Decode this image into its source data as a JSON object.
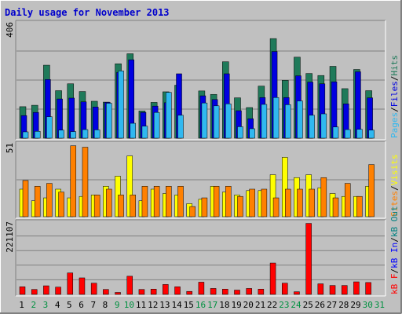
{
  "title": "Daily usage for November 2013",
  "colors": {
    "background": "#c0c0c0",
    "title": "#0000cc",
    "grid": "#808080",
    "hits": "#1f7a5a",
    "files": "#0000e0",
    "pages": "#30b8f0",
    "visits": "#ffff00",
    "sites": "#ff8000",
    "kb_f": "#ff0000",
    "kb_in": "#0000ff",
    "kb_out": "#008080",
    "weekend_day": "#009040",
    "weekday_day": "#000000"
  },
  "chart_data": [
    {
      "type": "bar",
      "name": "hits-files-pages",
      "ylim": [
        0,
        406
      ],
      "max_label": "406",
      "legend": [
        "Pages",
        "Files",
        "Hits"
      ],
      "x": [
        "1",
        "2",
        "3",
        "4",
        "5",
        "6",
        "7",
        "8",
        "9",
        "10",
        "11",
        "12",
        "13",
        "14",
        "15",
        "16",
        "17",
        "18",
        "19",
        "20",
        "21",
        "22",
        "23",
        "24",
        "25",
        "26",
        "27",
        "28",
        "29",
        "30",
        "31"
      ],
      "series": [
        {
          "name": "Hits",
          "values": [
            110,
            115,
            255,
            166,
            190,
            163,
            129,
            126,
            260,
            295,
            95,
            125,
            162,
            185,
            0,
            165,
            153,
            267,
            141,
            107,
            182,
            348,
            202,
            283,
            226,
            219,
            251,
            173,
            240,
            166,
            0
          ]
        },
        {
          "name": "Files",
          "values": [
            79,
            90,
            205,
            137,
            140,
            127,
            109,
            125,
            230,
            274,
            90,
            112,
            124,
            225,
            0,
            148,
            135,
            225,
            96,
            68,
            142,
            303,
            142,
            218,
            196,
            190,
            197,
            120,
            232,
            141,
            0
          ]
        },
        {
          "name": "Pages",
          "values": [
            22,
            24,
            75,
            28,
            23,
            30,
            29,
            122,
            235,
            52,
            42,
            90,
            160,
            80,
            0,
            123,
            113,
            120,
            40,
            33,
            118,
            142,
            117,
            130,
            80,
            85,
            39,
            30,
            31,
            28,
            0
          ]
        }
      ]
    },
    {
      "type": "bar",
      "name": "visits-sites",
      "ylim": [
        0,
        51
      ],
      "max_label": "51",
      "legend": [
        "Sites",
        "Visits"
      ],
      "x": [
        "1",
        "2",
        "3",
        "4",
        "5",
        "6",
        "7",
        "8",
        "9",
        "10",
        "11",
        "12",
        "13",
        "14",
        "15",
        "16",
        "17",
        "18",
        "19",
        "20",
        "21",
        "22",
        "23",
        "24",
        "25",
        "26",
        "27",
        "28",
        "29",
        "30",
        "31"
      ],
      "series": [
        {
          "name": "Visits",
          "values": [
            19,
            11,
            13,
            19,
            13,
            14,
            15,
            21,
            28,
            42,
            11,
            19,
            16,
            15,
            9,
            12,
            21,
            17,
            15,
            18,
            18,
            29,
            41,
            27,
            29,
            20,
            16,
            14,
            14,
            21,
            0
          ]
        },
        {
          "name": "Sites",
          "values": [
            25,
            21,
            23,
            17,
            49,
            48,
            15,
            19,
            15,
            15,
            21,
            21,
            21,
            21,
            7,
            13,
            21,
            21,
            14,
            19,
            19,
            13,
            19,
            19,
            19,
            27,
            13,
            23,
            14,
            36,
            0
          ]
        }
      ]
    },
    {
      "type": "bar",
      "name": "kbytes",
      "ylim": [
        0,
        221107
      ],
      "max_label": "221107",
      "legend": [
        "kB F",
        "kB In",
        "kB Out"
      ],
      "x": [
        "1",
        "2",
        "3",
        "4",
        "5",
        "6",
        "7",
        "8",
        "9",
        "10",
        "11",
        "12",
        "13",
        "14",
        "15",
        "16",
        "17",
        "18",
        "19",
        "20",
        "21",
        "22",
        "23",
        "24",
        "25",
        "26",
        "27",
        "28",
        "29",
        "30",
        "31"
      ],
      "series": [
        {
          "name": "kB F",
          "values": [
            23000,
            15000,
            26000,
            22000,
            65000,
            50000,
            34000,
            15000,
            6000,
            55000,
            15000,
            16000,
            30000,
            23000,
            9000,
            37000,
            18000,
            16000,
            13000,
            18000,
            16000,
            95000,
            34000,
            8000,
            215000,
            32000,
            27000,
            27000,
            38000,
            36000,
            0
          ]
        }
      ]
    }
  ]
}
